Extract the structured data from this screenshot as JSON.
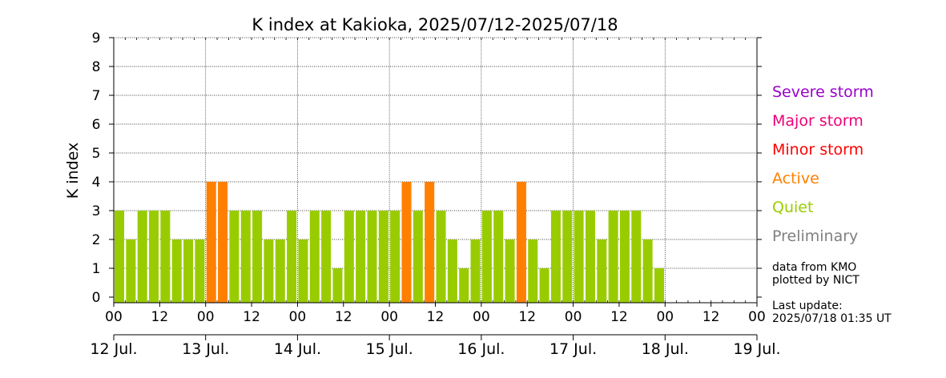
{
  "chart_data": {
    "type": "bar",
    "title": "K index at Kakioka, 2025/07/12-2025/07/18",
    "ylabel": "K index",
    "xlabel": "",
    "ylim": [
      0,
      9
    ],
    "yticks": [
      "0",
      "1",
      "2",
      "3",
      "4",
      "5",
      "6",
      "7",
      "8",
      "9"
    ],
    "grid": true,
    "hour_ticks": [
      "00",
      "12",
      "00",
      "12",
      "00",
      "12",
      "00",
      "12",
      "00",
      "12",
      "00",
      "12",
      "00",
      "12",
      "00"
    ],
    "date_labels": [
      "12 Jul.",
      "13 Jul.",
      "14 Jul.",
      "15 Jul.",
      "16 Jul.",
      "17 Jul.",
      "18 Jul.",
      "19 Jul."
    ],
    "interval_hours": 3,
    "series": [
      {
        "values": [
          3,
          2,
          3,
          3,
          3,
          2,
          2,
          2,
          4,
          4,
          3,
          3,
          3,
          2,
          2,
          3,
          2,
          3,
          3,
          1,
          3,
          3,
          3,
          3,
          3,
          4,
          3,
          4,
          3,
          2,
          1,
          2,
          3,
          3,
          2,
          4,
          2,
          1,
          3,
          3,
          3,
          3,
          2,
          3,
          3,
          3,
          2,
          1
        ],
        "levels": [
          "quiet",
          "quiet",
          "quiet",
          "quiet",
          "quiet",
          "quiet",
          "quiet",
          "quiet",
          "active",
          "active",
          "quiet",
          "quiet",
          "quiet",
          "quiet",
          "quiet",
          "quiet",
          "quiet",
          "quiet",
          "quiet",
          "quiet",
          "quiet",
          "quiet",
          "quiet",
          "quiet",
          "quiet",
          "active",
          "quiet",
          "active",
          "quiet",
          "quiet",
          "quiet",
          "quiet",
          "quiet",
          "quiet",
          "quiet",
          "active",
          "quiet",
          "quiet",
          "quiet",
          "quiet",
          "quiet",
          "quiet",
          "quiet",
          "quiet",
          "quiet",
          "quiet",
          "quiet",
          "quiet"
        ]
      }
    ],
    "colors": {
      "quiet": "#99cc00",
      "active": "#ff8000",
      "minor": "#ff0000",
      "major": "#ee0077",
      "severe": "#9900cc",
      "preliminary": "#808080"
    }
  },
  "legend": [
    {
      "label": "Severe storm",
      "color": "#9900cc"
    },
    {
      "label": "Major storm",
      "color": "#ee0077"
    },
    {
      "label": "Minor storm",
      "color": "#ff0000"
    },
    {
      "label": "Active",
      "color": "#ff8000"
    },
    {
      "label": "Quiet",
      "color": "#99cc00"
    },
    {
      "label": "Preliminary",
      "color": "#808080"
    }
  ],
  "notes": {
    "source_line1": "data from KMO",
    "source_line2": "plotted by NICT",
    "update_line1": "Last update:",
    "update_line2": "2025/07/18 01:35 UT"
  }
}
